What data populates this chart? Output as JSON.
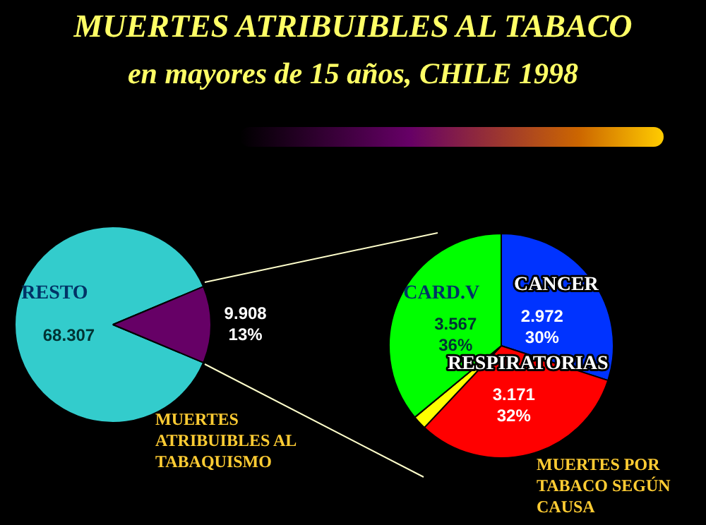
{
  "chart_data": [
    {
      "type": "pie",
      "title": "MUERTES ATRIBUIBLES AL TABACO",
      "subtitle": "en mayores de 15 años, CHILE 1998",
      "categories": [
        "RESTO",
        null
      ],
      "annotations": [
        "MUERTES ATRIBUIBLES AL TABAQUISMO"
      ],
      "values": [
        68307,
        9908
      ],
      "colors": [
        "#33cccc",
        "#660066"
      ],
      "value_labels": [
        "68.307",
        "9.908\n13%"
      ]
    },
    {
      "type": "pie",
      "categories": [
        "CANCER",
        "RESPIRATORIAS",
        null,
        "CARD.V"
      ],
      "values": [
        2972,
        3171,
        198,
        3567
      ],
      "colors": [
        "#0033ff",
        "#ff0000",
        "#ffff00",
        "#00ff00"
      ],
      "value_labels": [
        "2.972\n30%",
        "3.171\n32%",
        null,
        "3.567\n36%"
      ],
      "annotations": [
        "MUERTES POR TABACO SEGÚN CAUSA"
      ]
    }
  ]
}
